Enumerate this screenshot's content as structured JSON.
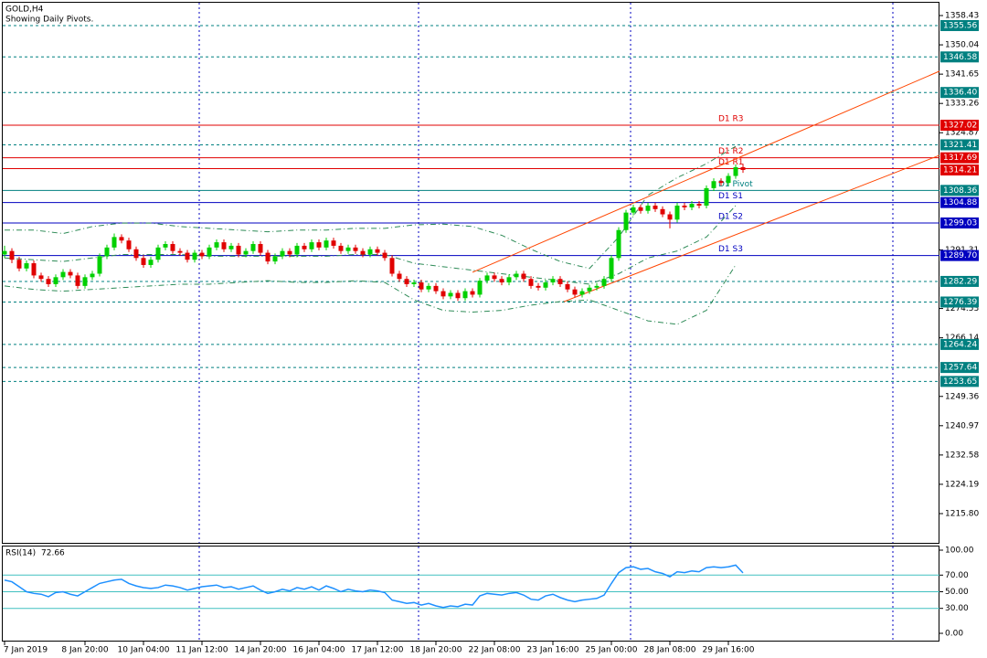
{
  "chart_data": [
    {
      "type": "candlestick",
      "title": "GOLD,H4",
      "subtitle": "Showing Daily Pivots.",
      "up_color": "#00d000",
      "down_color": "#e00000",
      "ylim": [
        1207.16,
        1362.36
      ],
      "yticks": [
        1358.43,
        1350.04,
        1341.65,
        1333.26,
        1324.87,
        1291.31,
        1274.53,
        1266.14,
        1249.36,
        1240.97,
        1232.58,
        1224.19,
        {
          "value": 1215.8,
          "label": "1215.80"
        }
      ],
      "xticks": [
        {
          "value": 0,
          "label": "7 Jan 2019"
        },
        {
          "value": 11,
          "label": "8 Jan 20:00"
        },
        {
          "value": 19,
          "label": "10 Jan 04:00"
        },
        {
          "value": 27,
          "label": "11 Jan 12:00"
        },
        {
          "value": 35,
          "label": "14 Jan 20:00"
        },
        {
          "value": 43,
          "label": "16 Jan 04:00"
        },
        {
          "value": 51,
          "label": "17 Jan 12:00"
        },
        {
          "value": 59,
          "label": "18 Jan 20:00"
        },
        {
          "value": 67,
          "label": "22 Jan 08:00"
        },
        {
          "value": 75,
          "label": "23 Jan 16:00"
        },
        {
          "value": 83,
          "label": "25 Jan 00:00"
        },
        {
          "value": 91,
          "label": "28 Jan 08:00"
        },
        {
          "value": 99,
          "label": "29 Jan 16:00"
        }
      ],
      "candles": [
        [
          1290.0,
          1292.5,
          1289.0,
          1291.0
        ],
        [
          1291.0,
          1291.8,
          1287.5,
          1288.5
        ],
        [
          1288.5,
          1289.3,
          1285.2,
          1286.0
        ],
        [
          1286.0,
          1288.3,
          1285.2,
          1287.5
        ],
        [
          1287.5,
          1288.3,
          1283.2,
          1284.0
        ],
        [
          1284.0,
          1284.8,
          1282.2,
          1283.0
        ],
        [
          1283.0,
          1283.8,
          1280.7,
          1281.5
        ],
        [
          1281.5,
          1284.3,
          1280.7,
          1283.5
        ],
        [
          1283.5,
          1285.8,
          1282.7,
          1285.0
        ],
        [
          1285.0,
          1285.8,
          1283.2,
          1284.0
        ],
        [
          1284.0,
          1284.8,
          1280.2,
          1281.0
        ],
        [
          1281.0,
          1284.3,
          1280.2,
          1283.5
        ],
        [
          1283.5,
          1285.3,
          1282.7,
          1284.5
        ],
        [
          1284.5,
          1290.3,
          1283.7,
          1289.5
        ],
        [
          1289.5,
          1292.8,
          1288.7,
          1292.0
        ],
        [
          1292.0,
          1296.0,
          1291.2,
          1295.0
        ],
        [
          1295.0,
          1295.8,
          1293.2,
          1294.0
        ],
        [
          1294.0,
          1294.8,
          1290.7,
          1291.5
        ],
        [
          1291.5,
          1292.3,
          1288.2,
          1289.0
        ],
        [
          1289.0,
          1289.8,
          1286.2,
          1287.0
        ],
        [
          1287.0,
          1289.3,
          1286.2,
          1288.5
        ],
        [
          1288.5,
          1292.8,
          1287.7,
          1292.0
        ],
        [
          1292.0,
          1293.8,
          1291.2,
          1293.0
        ],
        [
          1293.0,
          1293.8,
          1290.2,
          1291.0
        ],
        [
          1291.0,
          1291.8,
          1289.7,
          1290.5
        ],
        [
          1290.5,
          1291.3,
          1287.7,
          1288.5
        ],
        [
          1288.5,
          1291.3,
          1287.7,
          1290.5
        ],
        [
          1290.5,
          1291.3,
          1288.7,
          1289.5
        ],
        [
          1289.5,
          1292.8,
          1288.7,
          1292.0
        ],
        [
          1292.0,
          1294.3,
          1291.2,
          1293.5
        ],
        [
          1293.5,
          1294.3,
          1290.7,
          1291.5
        ],
        [
          1291.5,
          1293.3,
          1290.7,
          1292.5
        ],
        [
          1292.5,
          1293.3,
          1289.2,
          1290.0
        ],
        [
          1290.0,
          1291.8,
          1289.2,
          1291.0
        ],
        [
          1291.0,
          1293.8,
          1290.2,
          1293.0
        ],
        [
          1293.0,
          1293.8,
          1289.7,
          1290.5
        ],
        [
          1290.5,
          1291.3,
          1287.2,
          1288.0
        ],
        [
          1288.0,
          1290.3,
          1287.2,
          1289.5
        ],
        [
          1289.5,
          1291.8,
          1288.7,
          1291.0
        ],
        [
          1291.0,
          1291.8,
          1289.2,
          1290.0
        ],
        [
          1290.0,
          1293.3,
          1289.2,
          1292.5
        ],
        [
          1292.5,
          1293.3,
          1290.7,
          1291.5
        ],
        [
          1291.5,
          1294.3,
          1290.7,
          1293.5
        ],
        [
          1293.5,
          1294.3,
          1291.2,
          1292.0
        ],
        [
          1292.0,
          1294.8,
          1291.2,
          1294.0
        ],
        [
          1294.0,
          1294.8,
          1291.7,
          1292.5
        ],
        [
          1292.5,
          1293.3,
          1290.2,
          1291.0
        ],
        [
          1291.0,
          1292.8,
          1290.2,
          1292.0
        ],
        [
          1292.0,
          1292.8,
          1290.2,
          1291.0
        ],
        [
          1291.0,
          1291.8,
          1289.2,
          1290.0
        ],
        [
          1290.0,
          1292.3,
          1289.2,
          1291.5
        ],
        [
          1291.5,
          1292.3,
          1289.7,
          1290.5
        ],
        [
          1290.5,
          1291.3,
          1288.2,
          1289.0
        ],
        [
          1289.0,
          1289.8,
          1283.7,
          1284.5
        ],
        [
          1284.5,
          1285.3,
          1282.2,
          1283.0
        ],
        [
          1283.0,
          1283.8,
          1280.7,
          1281.5
        ],
        [
          1281.5,
          1282.8,
          1280.7,
          1282.0
        ],
        [
          1282.0,
          1282.8,
          1279.2,
          1280.0
        ],
        [
          1280.0,
          1281.8,
          1279.2,
          1281.0
        ],
        [
          1281.0,
          1281.8,
          1278.7,
          1279.5
        ],
        [
          1279.5,
          1280.3,
          1277.2,
          1278.0
        ],
        [
          1278.0,
          1279.8,
          1277.2,
          1279.0
        ],
        [
          1279.0,
          1279.8,
          1276.7,
          1277.5
        ],
        [
          1277.5,
          1280.3,
          1276.7,
          1279.5
        ],
        [
          1279.5,
          1280.3,
          1277.7,
          1278.5
        ],
        [
          1278.5,
          1283.3,
          1277.7,
          1282.5
        ],
        [
          1282.5,
          1284.8,
          1281.7,
          1284.0
        ],
        [
          1284.0,
          1284.8,
          1282.2,
          1283.0
        ],
        [
          1283.0,
          1283.8,
          1281.2,
          1282.0
        ],
        [
          1282.0,
          1284.3,
          1281.2,
          1283.5
        ],
        [
          1283.5,
          1285.3,
          1282.7,
          1284.5
        ],
        [
          1284.5,
          1285.3,
          1282.2,
          1283.0
        ],
        [
          1283.0,
          1283.8,
          1280.2,
          1281.0
        ],
        [
          1281.0,
          1281.8,
          1279.7,
          1280.5
        ],
        [
          1280.5,
          1282.8,
          1279.7,
          1282.0
        ],
        [
          1282.0,
          1283.8,
          1281.2,
          1283.0
        ],
        [
          1283.0,
          1283.8,
          1280.7,
          1281.5
        ],
        [
          1281.5,
          1282.3,
          1279.2,
          1280.0
        ],
        [
          1280.0,
          1280.8,
          1277.7,
          1278.5
        ],
        [
          1278.5,
          1280.3,
          1277.7,
          1279.5
        ],
        [
          1279.5,
          1281.3,
          1278.7,
          1280.5
        ],
        [
          1280.5,
          1281.8,
          1279.7,
          1281.0
        ],
        [
          1281.0,
          1283.8,
          1280.2,
          1283.0
        ],
        [
          1283.0,
          1289.8,
          1282.2,
          1289.0
        ],
        [
          1289.0,
          1297.8,
          1288.2,
          1297.0
        ],
        [
          1297.0,
          1302.8,
          1296.2,
          1302.0
        ],
        [
          1302.0,
          1304.3,
          1301.2,
          1303.5
        ],
        [
          1303.5,
          1304.3,
          1301.7,
          1302.5
        ],
        [
          1302.5,
          1304.8,
          1301.7,
          1304.0
        ],
        [
          1304.0,
          1304.8,
          1302.2,
          1303.0
        ],
        [
          1303.0,
          1303.8,
          1300.7,
          1301.5
        ],
        [
          1301.5,
          1302.3,
          1297.5,
          1300.0
        ],
        [
          1300.0,
          1304.8,
          1299.2,
          1304.0
        ],
        [
          1304.0,
          1304.8,
          1302.7,
          1303.5
        ],
        [
          1303.5,
          1305.3,
          1302.7,
          1304.5
        ],
        [
          1304.5,
          1305.3,
          1303.2,
          1304.0
        ],
        [
          1304.0,
          1309.8,
          1303.2,
          1309.0
        ],
        [
          1309.0,
          1311.8,
          1308.2,
          1311.0
        ],
        [
          1311.0,
          1311.8,
          1309.7,
          1310.5
        ],
        [
          1310.5,
          1313.3,
          1309.7,
          1312.5
        ],
        [
          1312.5,
          1315.8,
          1311.7,
          1315.0
        ],
        [
          1315.0,
          1316.0,
          1313.4,
          1314.21
        ]
      ],
      "bands": {
        "color": "#2e8b57",
        "x": [
          0,
          4,
          8,
          12,
          16,
          20,
          24,
          28,
          32,
          36,
          40,
          44,
          48,
          52,
          56,
          60,
          64,
          68,
          72,
          76,
          80,
          84,
          88,
          92,
          96,
          100
        ],
        "lines": [
          [
            1297,
            1297,
            1296,
            1298,
            1299,
            1299,
            1298,
            1297.5,
            1297,
            1296.5,
            1297,
            1297,
            1297.5,
            1297.5,
            1298.5,
            1298.7,
            1298,
            1295.5,
            1291.5,
            1288,
            1286,
            1295,
            1307,
            1312,
            1316,
            1321
          ],
          [
            1289,
            1288.5,
            1288,
            1289,
            1290,
            1290,
            1290,
            1289.5,
            1289.5,
            1289.5,
            1289.5,
            1289.5,
            1290,
            1290,
            1287.5,
            1286.5,
            1285.5,
            1284.5,
            1283.5,
            1282.5,
            1281.5,
            1284.5,
            1289,
            1291,
            1295,
            1304
          ],
          [
            1281,
            1280,
            1279.5,
            1280,
            1280.5,
            1281,
            1281.5,
            1281.5,
            1282,
            1282.5,
            1282,
            1282,
            1282.5,
            1282,
            1277,
            1274,
            1273.5,
            1274,
            1275.5,
            1276.5,
            1277,
            1274,
            1271,
            1270,
            1274,
            1287
          ]
        ]
      },
      "trendlines": {
        "color": "#ff4500",
        "lines": [
          {
            "x": [
              64,
              134.4
            ],
            "values": [
              1284.9,
              1342.5
            ]
          },
          {
            "x": [
              76.5,
              134.4
            ],
            "values": [
              1276.5,
              1318.4
            ]
          }
        ]
      },
      "levels_color": "#008080",
      "levels": [
        1355.56,
        1346.58,
        {
          "value": 1336.4,
          "label": "1336.40"
        },
        1321.41,
        1282.29,
        1276.39,
        1264.24,
        1257.64,
        1253.65
      ],
      "pivots": [
        {
          "name": "D1 R3",
          "value": 1327.02,
          "color": "#e00000",
          "box": true
        },
        {
          "name": "D1 R2",
          "value": 1317.69,
          "color": "#e00000",
          "box": true
        },
        {
          "name": "D1 R1",
          "value": 1314.6,
          "color": "#e00000",
          "box": false
        },
        {
          "name": "D1 Pivot",
          "value": 1308.36,
          "color": "#008080",
          "box": true
        },
        {
          "name": "D1 S1",
          "value": 1304.88,
          "color": "#0000c0",
          "box": true
        },
        {
          "name": "D1 S2",
          "value": 1299.03,
          "color": "#0000c0",
          "box": true
        },
        {
          "name": "D1 S3",
          "value": {
            "value": 1289.7,
            "label": "1289.70"
          },
          "color": "#0000c0",
          "box": true
        }
      ]
    },
    {
      "type": "line",
      "title": "RSI(14)",
      "color": "#1e90ff",
      "level_color": "#40c0c0",
      "ylim": [
        -9.9,
        104.4
      ],
      "yticks": [
        {
          "value": 100,
          "label": "100.00"
        },
        {
          "value": 70,
          "label": "70.00"
        },
        {
          "value": 50,
          "label": "50.00"
        },
        {
          "value": 30,
          "label": "30.00"
        },
        {
          "value": 0,
          "label": "0.00"
        }
      ],
      "levels": [
        70,
        50,
        30
      ],
      "values": [
        64,
        62,
        56,
        50,
        48,
        47,
        44,
        49,
        50,
        47,
        45,
        50,
        55,
        60,
        62,
        64,
        65,
        60,
        57,
        55,
        54,
        55,
        58,
        57,
        55,
        52,
        54,
        56,
        57,
        58,
        55,
        56,
        53,
        55,
        57,
        52,
        48,
        50,
        53,
        51,
        55,
        53,
        56,
        52,
        57,
        54,
        50,
        53,
        51,
        50,
        52,
        51,
        49,
        40,
        38,
        36,
        37,
        34,
        36,
        33,
        31,
        33,
        32,
        35,
        34,
        45,
        48,
        47,
        46,
        48,
        49,
        46,
        41,
        40,
        45,
        47,
        43,
        40,
        38,
        40,
        41,
        42,
        46,
        60,
        73,
        79,
        80,
        77,
        78,
        74,
        72,
        68,
        74,
        73,
        75,
        74,
        79,
        80,
        79,
        80,
        82,
        72.66
      ]
    }
  ]
}
